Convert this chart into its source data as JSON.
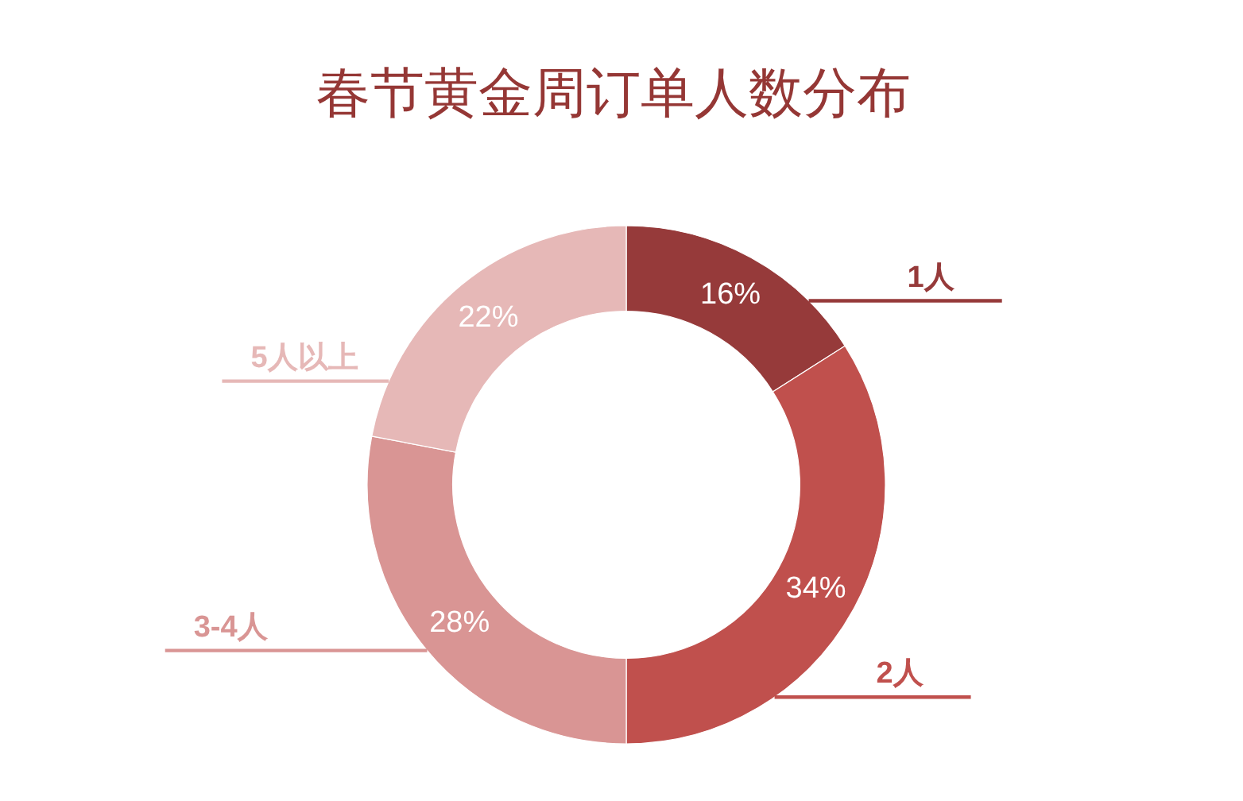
{
  "chart_data": {
    "type": "donut",
    "title": "春节黄金周订单人数分布",
    "categories": [
      "1人",
      "2人",
      "3-4人",
      "5人以上"
    ],
    "values": [
      16,
      34,
      28,
      22
    ],
    "colors": [
      "#963a3a",
      "#c0504d",
      "#d99594",
      "#e6b8b7"
    ],
    "value_labels": [
      "16%",
      "34%",
      "28%",
      "22%"
    ]
  }
}
